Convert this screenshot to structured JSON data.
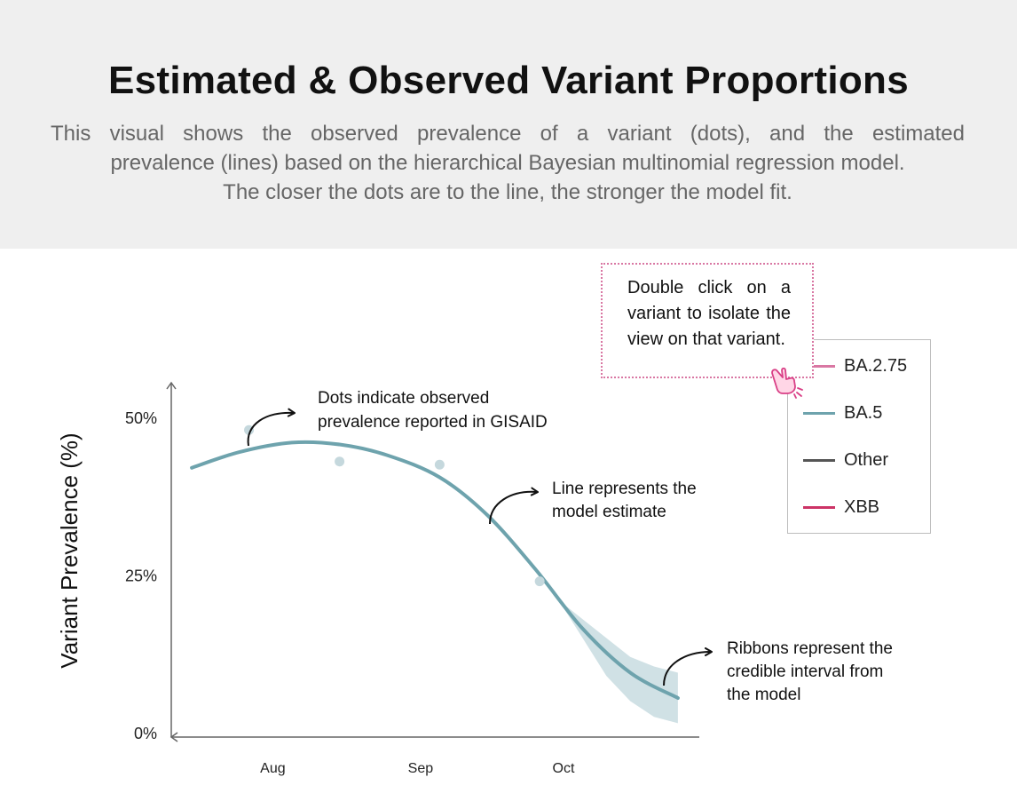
{
  "header": {
    "title": "Estimated & Observed Variant Proportions",
    "subtitle_line1": "This visual shows the observed prevalence of a variant (dots), and the estimated",
    "subtitle_line2": "prevalence (lines) based on the hierarchical Bayesian multinomial regression model.",
    "subtitle_line3": "The closer the dots are to the line, the stronger the model fit."
  },
  "tooltip": {
    "text": "Double click on a variant to isolate the view on that variant.",
    "icon": "pointing-hand-icon",
    "border_color": "#d977a3"
  },
  "chart_data": {
    "type": "line",
    "ylabel": "Variant Prevalence (%)",
    "xlabel": "",
    "ylim": [
      0,
      0.5
    ],
    "xlim": [
      "2022-07-12",
      "2022-10-28"
    ],
    "x_ticks": [
      {
        "label": "Aug",
        "date": "2022-08-01"
      },
      {
        "label": "Sep",
        "date": "2022-09-01"
      },
      {
        "label": "Oct",
        "date": "2022-10-01"
      }
    ],
    "y_ticks": [
      {
        "label": "0%",
        "value": 0
      },
      {
        "label": "25%",
        "value": 0.25
      },
      {
        "label": "50%",
        "value": 0.5
      }
    ],
    "series": [
      {
        "name": "BA.5",
        "color": "#6ea3ad",
        "estimate": [
          {
            "x": "2022-07-15",
            "y": 0.42
          },
          {
            "x": "2022-07-25",
            "y": 0.445
          },
          {
            "x": "2022-08-05",
            "y": 0.46
          },
          {
            "x": "2022-08-15",
            "y": 0.457
          },
          {
            "x": "2022-08-25",
            "y": 0.44
          },
          {
            "x": "2022-09-05",
            "y": 0.405
          },
          {
            "x": "2022-09-15",
            "y": 0.345
          },
          {
            "x": "2022-09-25",
            "y": 0.26
          },
          {
            "x": "2022-10-05",
            "y": 0.165
          },
          {
            "x": "2022-10-15",
            "y": 0.095
          },
          {
            "x": "2022-10-25",
            "y": 0.055
          }
        ],
        "ribbon": [
          {
            "x": "2022-09-30",
            "lo": 0.21,
            "hi": 0.21
          },
          {
            "x": "2022-10-05",
            "lo": 0.15,
            "hi": 0.18
          },
          {
            "x": "2022-10-10",
            "lo": 0.09,
            "hi": 0.15
          },
          {
            "x": "2022-10-15",
            "lo": 0.05,
            "hi": 0.12
          },
          {
            "x": "2022-10-20",
            "lo": 0.025,
            "hi": 0.105
          },
          {
            "x": "2022-10-25",
            "lo": 0.015,
            "hi": 0.095
          }
        ],
        "observed": [
          {
            "x": "2022-07-27",
            "y": 0.48
          },
          {
            "x": "2022-08-15",
            "y": 0.43
          },
          {
            "x": "2022-09-05",
            "y": 0.425
          },
          {
            "x": "2022-09-26",
            "y": 0.24
          }
        ]
      }
    ],
    "annotations": [
      {
        "text_lines": [
          "Dots indicate observed",
          "prevalence reported in GISAID"
        ]
      },
      {
        "text_lines": [
          "Line represents the",
          "model estimate"
        ]
      },
      {
        "text_lines": [
          "Ribbons represent the",
          "credible interval from",
          "the model"
        ]
      }
    ],
    "legend": {
      "placement": "top-right",
      "items": [
        {
          "label": "BA.2.75",
          "color": "#d977a3"
        },
        {
          "label": "BA.5",
          "color": "#6ea3ad"
        },
        {
          "label": "Other",
          "color": "#555555"
        },
        {
          "label": "XBB",
          "color": "#cc3366"
        }
      ]
    }
  }
}
